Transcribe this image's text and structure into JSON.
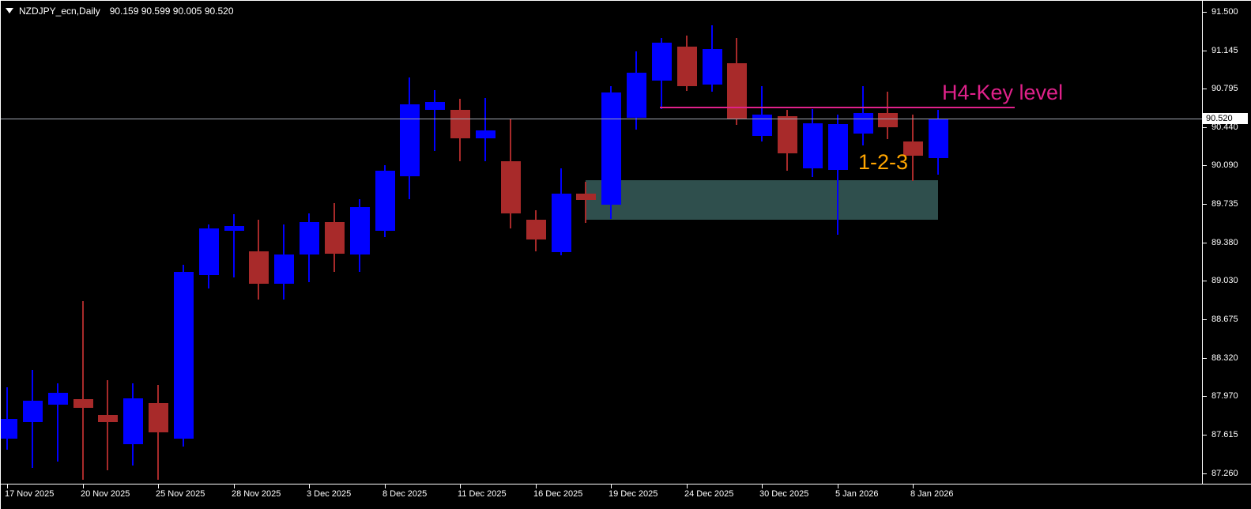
{
  "window_title": {
    "symbol_period": "NZDJPY_ecn,Daily",
    "ohlc_readout": "90.159 90.599 90.005 90.520"
  },
  "price_axis": {
    "tick_labels": [
      "91.500",
      "91.145",
      "90.795",
      "90.440",
      "90.090",
      "89.735",
      "89.380",
      "89.030",
      "88.675",
      "88.320",
      "87.970",
      "87.615",
      "87.260"
    ],
    "current_price_label": "90.520"
  },
  "time_axis": {
    "tick_labels": [
      "17 Nov 2025",
      "20 Nov 2025",
      "25 Nov 2025",
      "28 Nov 2025",
      "3 Dec 2025",
      "8 Dec 2025",
      "11 Dec 2025",
      "16 Dec 2025",
      "19 Dec 2025",
      "24 Dec 2025",
      "30 Dec 2025",
      "5 Jan 2026",
      "8 Jan 2026"
    ]
  },
  "annotations": {
    "key_level_text": "H4-Key level",
    "pattern_text": "1-2-3"
  },
  "colors": {
    "background": "#000000",
    "bull": "#0000FF",
    "bear": "#A82A2A",
    "zone_fill": "#2F4F4D",
    "key_level": "#E0218A",
    "pattern_text": "#FFA500",
    "current_price_line": "#A0A6B0",
    "axis_text": "#FFFFFF"
  },
  "chart_data": {
    "type": "candlestick",
    "symbol": "NZDJPY_ecn",
    "timeframe": "Daily",
    "title": "NZDJPY_ecn,Daily 90.159 90.599 90.005 90.520",
    "y_axis_ticks": [
      91.5,
      91.145,
      90.795,
      90.44,
      90.09,
      89.735,
      89.38,
      89.03,
      88.675,
      88.32,
      87.97,
      87.615,
      87.26
    ],
    "y_range": [
      87.26,
      91.5
    ],
    "grid": false,
    "current_price": 90.52,
    "last_bar": {
      "open": 90.159,
      "high": 90.599,
      "low": 90.005,
      "close": 90.52
    },
    "key_level_line": {
      "price": 90.62,
      "starts_at": "23 Dec 2025",
      "label": "H4-Key level"
    },
    "supply_zone": {
      "price_top": 89.95,
      "price_bottom": 89.585,
      "from": "18 Dec 2025",
      "to": "9 Jan 2026"
    },
    "candles": [
      {
        "d": "17 Nov 2025",
        "o": 87.58,
        "h": 88.05,
        "l": 87.48,
        "c": 87.76
      },
      {
        "d": "18 Nov 2025",
        "o": 87.73,
        "h": 88.21,
        "l": 87.31,
        "c": 87.93
      },
      {
        "d": "19 Nov 2025",
        "o": 87.89,
        "h": 88.09,
        "l": 87.37,
        "c": 88.0
      },
      {
        "d": "20 Nov 2025",
        "o": 87.94,
        "h": 88.84,
        "l": 87.2,
        "c": 87.86
      },
      {
        "d": "21 Nov 2025",
        "o": 87.8,
        "h": 88.12,
        "l": 87.29,
        "c": 87.73
      },
      {
        "d": "24 Nov 2025",
        "o": 87.53,
        "h": 88.09,
        "l": 87.33,
        "c": 87.95
      },
      {
        "d": "25 Nov 2025",
        "o": 87.91,
        "h": 88.07,
        "l": 87.2,
        "c": 87.64
      },
      {
        "d": "26 Nov 2025",
        "o": 87.58,
        "h": 89.18,
        "l": 87.51,
        "c": 89.11
      },
      {
        "d": "27 Nov 2025",
        "o": 89.08,
        "h": 89.55,
        "l": 88.96,
        "c": 89.51
      },
      {
        "d": "28 Nov 2025",
        "o": 89.49,
        "h": 89.64,
        "l": 89.06,
        "c": 89.53
      },
      {
        "d": "1 Dec 2025",
        "o": 89.3,
        "h": 89.59,
        "l": 88.86,
        "c": 89.0
      },
      {
        "d": "2 Dec 2025",
        "o": 89.0,
        "h": 89.55,
        "l": 88.86,
        "c": 89.27
      },
      {
        "d": "3 Dec 2025",
        "o": 89.27,
        "h": 89.65,
        "l": 89.02,
        "c": 89.57
      },
      {
        "d": "4 Dec 2025",
        "o": 89.57,
        "h": 89.74,
        "l": 89.11,
        "c": 89.28
      },
      {
        "d": "5 Dec 2025",
        "o": 89.27,
        "h": 89.78,
        "l": 89.11,
        "c": 89.71
      },
      {
        "d": "8 Dec 2025",
        "o": 89.49,
        "h": 90.09,
        "l": 89.43,
        "c": 90.04
      },
      {
        "d": "9 Dec 2025",
        "o": 89.99,
        "h": 90.9,
        "l": 89.78,
        "c": 90.65
      },
      {
        "d": "10 Dec 2025",
        "o": 90.6,
        "h": 90.78,
        "l": 90.22,
        "c": 90.67
      },
      {
        "d": "11 Dec 2025",
        "o": 90.6,
        "h": 90.7,
        "l": 90.13,
        "c": 90.34
      },
      {
        "d": "12 Dec 2025",
        "o": 90.34,
        "h": 90.71,
        "l": 90.13,
        "c": 90.41
      },
      {
        "d": "15 Dec 2025",
        "o": 90.13,
        "h": 90.52,
        "l": 89.51,
        "c": 89.65
      },
      {
        "d": "16 Dec 2025",
        "o": 89.59,
        "h": 89.68,
        "l": 89.3,
        "c": 89.41
      },
      {
        "d": "17 Dec 2025",
        "o": 89.29,
        "h": 90.06,
        "l": 89.26,
        "c": 89.83
      },
      {
        "d": "18 Dec 2025",
        "o": 89.83,
        "h": 89.94,
        "l": 89.56,
        "c": 89.77
      },
      {
        "d": "19 Dec 2025",
        "o": 89.73,
        "h": 90.82,
        "l": 89.6,
        "c": 90.76
      },
      {
        "d": "22 Dec 2025",
        "o": 90.53,
        "h": 91.14,
        "l": 90.42,
        "c": 90.94
      },
      {
        "d": "23 Dec 2025",
        "o": 90.87,
        "h": 91.26,
        "l": 90.61,
        "c": 91.22
      },
      {
        "d": "24 Dec 2025",
        "o": 91.18,
        "h": 91.28,
        "l": 90.77,
        "c": 90.82
      },
      {
        "d": "26 Dec 2025",
        "o": 90.83,
        "h": 91.38,
        "l": 90.77,
        "c": 91.16
      },
      {
        "d": "29 Dec 2025",
        "o": 91.03,
        "h": 91.26,
        "l": 90.46,
        "c": 90.52
      },
      {
        "d": "30 Dec 2025",
        "o": 90.36,
        "h": 90.82,
        "l": 90.31,
        "c": 90.56
      },
      {
        "d": "31 Dec 2025",
        "o": 90.54,
        "h": 90.6,
        "l": 90.04,
        "c": 90.2
      },
      {
        "d": "2 Jan 2026",
        "o": 90.06,
        "h": 90.61,
        "l": 89.98,
        "c": 90.48
      },
      {
        "d": "5 Jan 2026",
        "o": 90.05,
        "h": 90.56,
        "l": 89.45,
        "c": 90.47
      },
      {
        "d": "6 Jan 2026",
        "o": 90.38,
        "h": 90.82,
        "l": 90.27,
        "c": 90.57
      },
      {
        "d": "7 Jan 2026",
        "o": 90.57,
        "h": 90.77,
        "l": 90.33,
        "c": 90.44
      },
      {
        "d": "8 Jan 2026",
        "o": 90.31,
        "h": 90.56,
        "l": 89.95,
        "c": 90.18
      },
      {
        "d": "9 Jan 2026",
        "o": 90.159,
        "h": 90.599,
        "l": 90.005,
        "c": 90.52
      }
    ]
  }
}
